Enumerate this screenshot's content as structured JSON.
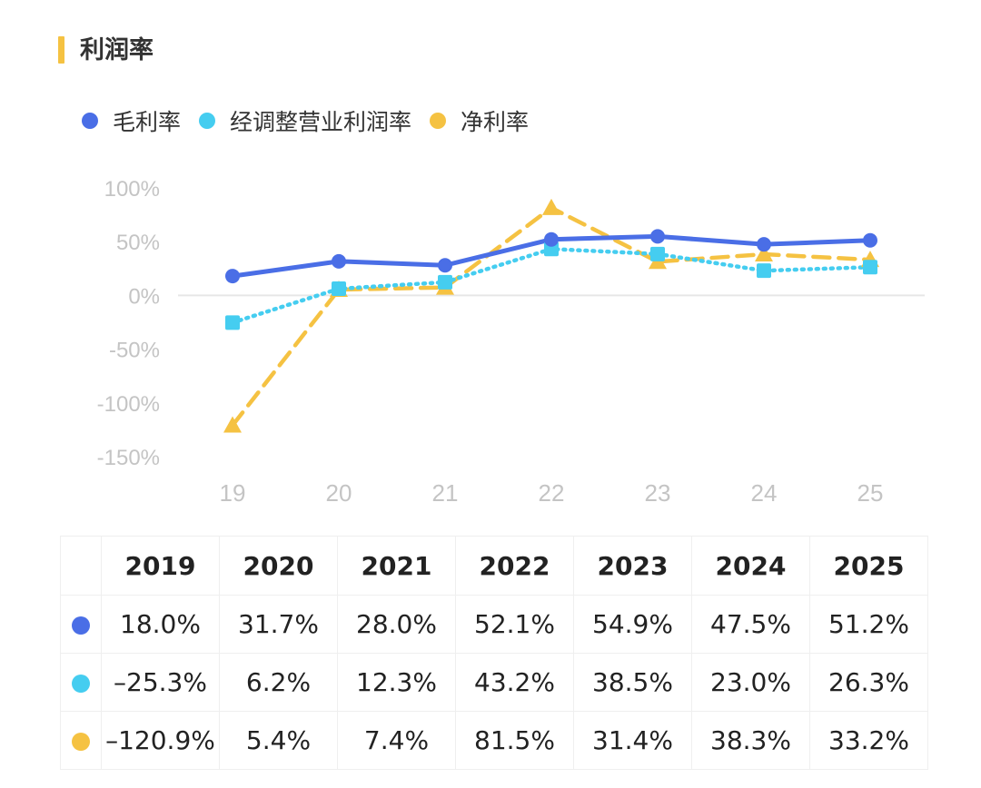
{
  "title": "利润率",
  "colors": {
    "gross": "#4a6ee6",
    "adjusted": "#45cdf0",
    "net": "#f5c242",
    "accent": "#f5c242"
  },
  "legend": [
    {
      "label": "毛利率",
      "color": "#4a6ee6"
    },
    {
      "label": "经调整营业利润率",
      "color": "#45cdf0"
    },
    {
      "label": "净利率",
      "color": "#f5c242"
    }
  ],
  "chart_data": {
    "type": "line",
    "x": [
      "19",
      "20",
      "21",
      "22",
      "23",
      "24",
      "25"
    ],
    "yticks": [
      "100%",
      "50%",
      "0%",
      "-50%",
      "-100%",
      "-150%"
    ],
    "ylim": [
      -150,
      100
    ],
    "grid": false,
    "legend_position": "top-left",
    "series": [
      {
        "name": "毛利率",
        "color": "#4a6ee6",
        "style": "solid",
        "marker": "circle",
        "values": [
          18.0,
          31.7,
          28.0,
          52.1,
          54.9,
          47.5,
          51.2
        ]
      },
      {
        "name": "经调整营业利润率",
        "color": "#45cdf0",
        "style": "dotted",
        "marker": "square",
        "values": [
          -25.3,
          6.2,
          12.3,
          43.2,
          38.5,
          23.0,
          26.3
        ]
      },
      {
        "name": "净利率",
        "color": "#f5c242",
        "style": "dashed",
        "marker": "triangle",
        "values": [
          -120.9,
          5.4,
          7.4,
          81.5,
          31.4,
          38.3,
          33.2
        ]
      }
    ]
  },
  "table": {
    "headers": [
      "2019",
      "2020",
      "2021",
      "2022",
      "2023",
      "2024",
      "2025"
    ],
    "rows": [
      {
        "color": "#4a6ee6",
        "cells": [
          "18.0%",
          "31.7%",
          "28.0%",
          "52.1%",
          "54.9%",
          "47.5%",
          "51.2%"
        ]
      },
      {
        "color": "#45cdf0",
        "cells": [
          "–25.3%",
          "6.2%",
          "12.3%",
          "43.2%",
          "38.5%",
          "23.0%",
          "26.3%"
        ]
      },
      {
        "color": "#f5c242",
        "cells": [
          "–120.9%",
          "5.4%",
          "7.4%",
          "81.5%",
          "31.4%",
          "38.3%",
          "33.2%"
        ]
      }
    ]
  }
}
